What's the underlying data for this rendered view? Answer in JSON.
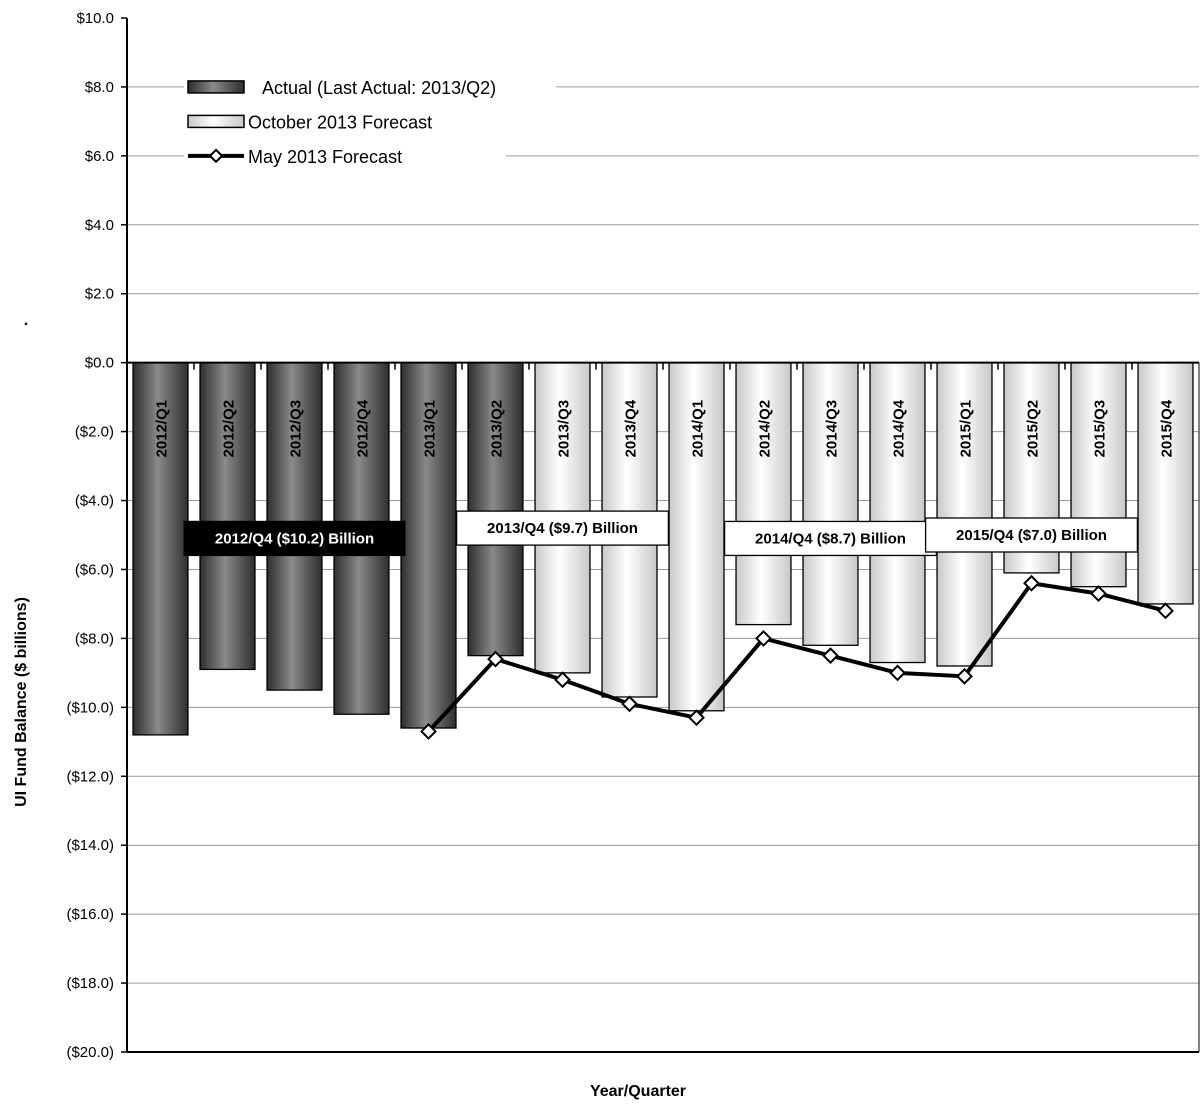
{
  "chart_data": {
    "type": "bar",
    "title": "",
    "xlabel": "Year/Quarter",
    "ylabel": "UI Fund Balance ($ billions)",
    "ylim": [
      -20,
      10
    ],
    "yticks": [
      10,
      8,
      6,
      4,
      2,
      0,
      -2,
      -4,
      -6,
      -8,
      -10,
      -12,
      -14,
      -16,
      -18,
      -20
    ],
    "ytick_labels": [
      "$10.0",
      "$8.0",
      "$6.0",
      "$4.0",
      "$2.0",
      "$0.0",
      "($2.0)",
      "($4.0)",
      "($6.0)",
      "($8.0)",
      "($10.0)",
      "($12.0)",
      "($14.0)",
      "($16.0)",
      "($18.0)",
      "($20.0)"
    ],
    "grid": true,
    "legend_position": "top-left",
    "stray_mark": ".",
    "categories": [
      "2012/Q1",
      "2012/Q2",
      "2012/Q3",
      "2012/Q4",
      "2013/Q1",
      "2013/Q2",
      "2013/Q3",
      "2013/Q4",
      "2014/Q1",
      "2014/Q2",
      "2014/Q3",
      "2014/Q4",
      "2015/Q1",
      "2015/Q2",
      "2015/Q3",
      "2015/Q4"
    ],
    "series": [
      {
        "name": "Actual (Last Actual: 2013/Q2)",
        "kind": "bar",
        "color": "#4a4a4a",
        "values": [
          -10.8,
          -8.9,
          -9.5,
          -10.2,
          -10.6,
          -8.5,
          null,
          null,
          null,
          null,
          null,
          null,
          null,
          null,
          null,
          null
        ]
      },
      {
        "name": "October 2013 Forecast",
        "kind": "bar",
        "color": "#eeeeee",
        "values": [
          null,
          null,
          null,
          null,
          null,
          null,
          -9.0,
          -9.7,
          -10.1,
          -7.6,
          -8.2,
          -8.7,
          -8.8,
          -6.1,
          -6.5,
          -7.0
        ]
      },
      {
        "name": "May 2013 Forecast",
        "kind": "line",
        "color": "#000000",
        "values": [
          null,
          null,
          null,
          null,
          -10.7,
          -8.6,
          -9.2,
          -9.9,
          -10.3,
          -8.0,
          -8.5,
          -9.0,
          -9.1,
          -6.4,
          -6.7,
          -7.2
        ]
      }
    ],
    "annotations": [
      {
        "text": "2012/Q4 ($10.2) Billion",
        "at_category": "2012/Q3",
        "y": -5.1,
        "style": "dark"
      },
      {
        "text": "2013/Q4 ($9.7) Billion",
        "at_category": "2013/Q3",
        "y": -4.8,
        "style": "light"
      },
      {
        "text": "2014/Q4 ($8.7) Billion",
        "at_category": "2014/Q3",
        "y": -5.1,
        "style": "light"
      },
      {
        "text": "2015/Q4 ($7.0) Billion",
        "at_category": "2015/Q2",
        "y": -5.0,
        "style": "light"
      }
    ]
  }
}
